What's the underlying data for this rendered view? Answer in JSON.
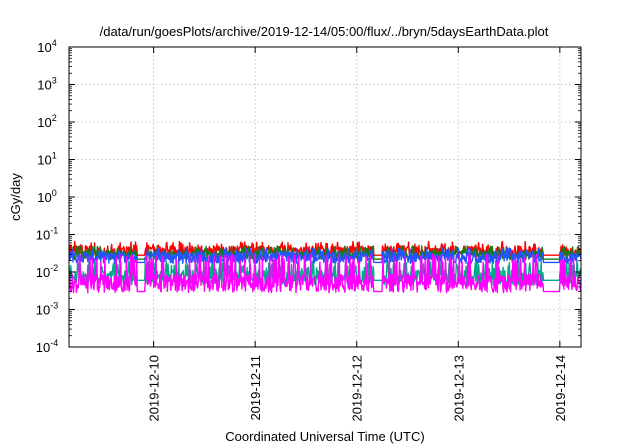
{
  "chart_data": {
    "type": "line",
    "title": "/data/run/goesPlots/archive/2019-12-14/05:00/flux/../bryn/5daysEarthData.plot",
    "xlabel": "Coordinated Universal Time (UTC)",
    "ylabel": "cGy/day",
    "yscale": "log",
    "ylim": [
      0.0001,
      10000
    ],
    "xlim": [
      "2019-12-09T04:00",
      "2019-12-14T05:00"
    ],
    "grid": true,
    "x_ticks": [
      "2019-12-10",
      "2019-12-11",
      "2019-12-12",
      "2019-12-13",
      "2019-12-14"
    ],
    "y_ticks": [
      {
        "base": "10",
        "exp": "-4"
      },
      {
        "base": "10",
        "exp": "-3"
      },
      {
        "base": "10",
        "exp": "-2"
      },
      {
        "base": "10",
        "exp": "-1"
      },
      {
        "base": "10",
        "exp": "0"
      },
      {
        "base": "10",
        "exp": "1"
      },
      {
        "base": "10",
        "exp": "2"
      },
      {
        "base": "10",
        "exp": "3"
      },
      {
        "base": "10",
        "exp": "4"
      }
    ],
    "series": [
      {
        "color": "#ff0000",
        "base": 0.035,
        "spike": 0.065,
        "dip": 0.028,
        "noise": 0.15
      },
      {
        "color": "#1a7a1a",
        "base": 0.028,
        "spike": 0.05,
        "dip": 0.022,
        "noise": 0.12
      },
      {
        "color": "#00aa88",
        "base": 0.007,
        "spike": 0.02,
        "dip": 0.006,
        "noise": 0.2
      },
      {
        "color": "#2255ff",
        "base": 0.024,
        "spike": 0.045,
        "dip": 0.018,
        "noise": 0.15
      },
      {
        "color": "#ff00ff",
        "base": 0.005,
        "spike": 0.03,
        "dip": 0.003,
        "noise": 0.25
      }
    ]
  }
}
